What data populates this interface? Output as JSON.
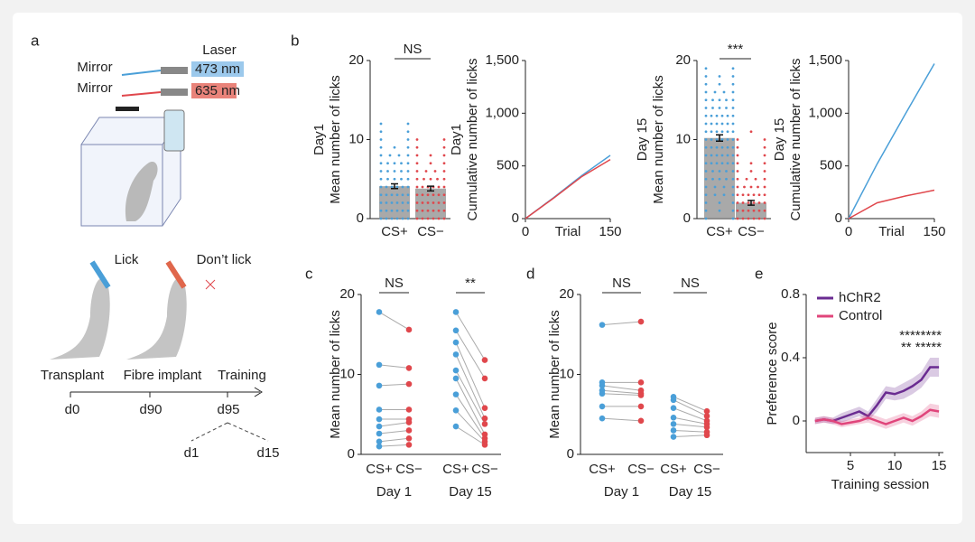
{
  "panel_labels": [
    "a",
    "b",
    "c",
    "d",
    "e"
  ],
  "panel_a": {
    "laser": "Laser",
    "mirrors": [
      "Mirror",
      "Mirror"
    ],
    "wavelengths": [
      "473 nm",
      "635 nm"
    ],
    "lick": "Lick",
    "dont_lick": "Don’t lick",
    "timeline": [
      "Transplant",
      "Fibre implant",
      "Training"
    ],
    "days": [
      "d0",
      "d90",
      "d95"
    ],
    "sub_days": [
      "d1",
      "d15"
    ]
  },
  "chart_data": [
    {
      "type": "strip",
      "annotation": "NS",
      "ylabel": [
        "Day1",
        "Mean number of licks"
      ],
      "categories": [
        "CS+",
        "CS−"
      ],
      "values": [
        4.1,
        3.8
      ],
      "errors": [
        0.3,
        0.3
      ],
      "ylim": [
        0,
        20
      ],
      "yticks": [
        0,
        10,
        20
      ],
      "dots": [
        {
          "color": "#4a9fd8",
          "levels": [
            0,
            1,
            2,
            3,
            4,
            5,
            6,
            7,
            8,
            9,
            10,
            11,
            12
          ],
          "counts": [
            6,
            6,
            6,
            6,
            6,
            5,
            5,
            5,
            4,
            3,
            2,
            2,
            2
          ]
        },
        {
          "color": "#e0474c",
          "levels": [
            0,
            1,
            2,
            3,
            4,
            5,
            6,
            7,
            8,
            9,
            10
          ],
          "counts": [
            6,
            6,
            6,
            6,
            6,
            5,
            4,
            3,
            3,
            2,
            2
          ]
        }
      ]
    },
    {
      "type": "line",
      "ylabel": [
        "Day1",
        "Cumulative number of licks"
      ],
      "xlabel": "Trial",
      "x": [
        0,
        50,
        100,
        150
      ],
      "xlim": [
        0,
        150
      ],
      "xticks": [
        0,
        150
      ],
      "ylim": [
        0,
        1500
      ],
      "yticks": [
        0,
        500,
        {
          "value": 1000,
          "label": "1,000"
        },
        {
          "value": 1500,
          "label": "1,500"
        }
      ],
      "series": [
        {
          "color": "#4a9fd8",
          "values": [
            0,
            200,
            410,
            600
          ]
        },
        {
          "color": "#e0474c",
          "values": [
            0,
            195,
            400,
            560
          ]
        }
      ]
    },
    {
      "type": "strip",
      "annotation": "***",
      "ylabel": [
        "Day 15",
        "Mean number of licks"
      ],
      "categories": [
        "CS+",
        "CS−"
      ],
      "values": [
        10.2,
        2.0
      ],
      "errors": [
        0.4,
        0.3
      ],
      "ylim": [
        0,
        20
      ],
      "yticks": [
        0,
        10,
        20
      ],
      "dots": [
        {
          "color": "#4a9fd8",
          "levels": [
            0,
            1,
            2,
            3,
            4,
            5,
            6,
            7,
            8,
            9,
            10,
            11,
            12,
            13,
            14,
            15,
            16,
            17,
            18,
            19
          ],
          "counts": [
            2,
            3,
            3,
            4,
            4,
            5,
            5,
            6,
            6,
            6,
            6,
            6,
            6,
            6,
            5,
            5,
            4,
            3,
            3,
            2
          ]
        },
        {
          "color": "#e0474c",
          "levels": [
            0,
            1,
            2,
            3,
            4,
            5,
            6,
            7,
            8,
            9,
            10,
            11
          ],
          "counts": [
            6,
            6,
            6,
            6,
            5,
            4,
            3,
            3,
            2,
            2,
            2,
            1
          ]
        }
      ]
    },
    {
      "type": "line",
      "ylabel": [
        "Day 15",
        "Cumulative number of licks"
      ],
      "xlabel": "Trial",
      "x": [
        0,
        50,
        100,
        150
      ],
      "xlim": [
        0,
        150
      ],
      "xticks": [
        0,
        150
      ],
      "ylim": [
        0,
        1500
      ],
      "yticks": [
        0,
        500,
        {
          "value": 1000,
          "label": "1,000"
        },
        {
          "value": 1500,
          "label": "1,500"
        }
      ],
      "series": [
        {
          "color": "#4a9fd8",
          "values": [
            0,
            520,
            1000,
            1470
          ]
        },
        {
          "color": "#e0474c",
          "values": [
            0,
            150,
            215,
            270
          ]
        }
      ]
    },
    {
      "type": "paired",
      "ylabel": [
        "Mean number of licks"
      ],
      "ylim": [
        0,
        20
      ],
      "yticks": [
        0,
        10,
        20
      ],
      "groups": [
        {
          "label": "Day 1",
          "annotation": "NS",
          "series": [
            {
              "name": "CS+",
              "color": "#4a9fd8",
              "values": [
                17.8,
                11.2,
                8.6,
                5.6,
                4.4,
                3.5,
                2.6,
                1.6,
                1.0
              ]
            },
            {
              "name": "CS−",
              "color": "#e0474c",
              "values": [
                15.6,
                10.8,
                8.8,
                5.6,
                4.4,
                4.0,
                3.0,
                2.0,
                1.2
              ]
            }
          ]
        },
        {
          "label": "Day 15",
          "annotation": "**",
          "series": [
            {
              "name": "CS+",
              "color": "#4a9fd8",
              "values": [
                17.8,
                15.5,
                14.0,
                12.5,
                10.5,
                9.5,
                7.5,
                5.5,
                3.5
              ]
            },
            {
              "name": "CS−",
              "color": "#e0474c",
              "values": [
                11.8,
                9.5,
                5.8,
                4.5,
                3.8,
                2.5,
                2.0,
                1.6,
                1.2
              ]
            }
          ]
        }
      ]
    },
    {
      "type": "paired",
      "ylabel": [
        "Mean number of licks"
      ],
      "ylim": [
        0,
        20
      ],
      "yticks": [
        0,
        10,
        20
      ],
      "groups": [
        {
          "label": "Day 1",
          "annotation": "NS",
          "series": [
            {
              "name": "CS+",
              "color": "#4a9fd8",
              "values": [
                16.2,
                9.0,
                8.6,
                8.0,
                7.6,
                6.0,
                4.5
              ]
            },
            {
              "name": "CS−",
              "color": "#e0474c",
              "values": [
                16.6,
                9.0,
                8.0,
                7.6,
                7.4,
                6.0,
                4.2
              ]
            }
          ]
        },
        {
          "label": "Day 15",
          "annotation": "NS",
          "series": [
            {
              "name": "CS+",
              "color": "#4a9fd8",
              "values": [
                7.2,
                6.8,
                5.8,
                4.6,
                3.8,
                3.0,
                2.2
              ]
            },
            {
              "name": "CS−",
              "color": "#e0474c",
              "values": [
                5.4,
                4.8,
                4.2,
                3.8,
                3.4,
                2.8,
                2.4
              ]
            }
          ]
        }
      ]
    },
    {
      "type": "band",
      "ylabel": [
        "Preference score"
      ],
      "xlabel": "Training session",
      "x": [
        1,
        2,
        3,
        4,
        5,
        6,
        7,
        8,
        9,
        10,
        11,
        12,
        13,
        14,
        15
      ],
      "xlim": [
        0,
        15.5
      ],
      "xticks": [
        5,
        10,
        15
      ],
      "ylim": [
        -0.2,
        0.8
      ],
      "yticks": [
        0,
        0.4,
        0.8
      ],
      "annotations": [
        "********",
        "** *****"
      ],
      "series": [
        {
          "name": "hChR2",
          "color": "#6a2c91",
          "values": [
            0,
            0.01,
            0,
            0.02,
            0.04,
            0.06,
            0.03,
            0.1,
            0.18,
            0.17,
            0.19,
            0.22,
            0.26,
            0.34,
            0.34
          ],
          "errors": [
            0.02,
            0.02,
            0.02,
            0.03,
            0.03,
            0.03,
            0.03,
            0.04,
            0.04,
            0.04,
            0.05,
            0.05,
            0.05,
            0.06,
            0.06
          ]
        },
        {
          "name": "Control",
          "color": "#e0457b",
          "values": [
            0,
            0.01,
            0,
            -0.02,
            -0.01,
            0,
            0.02,
            0,
            -0.02,
            0,
            0.02,
            0,
            0.03,
            0.07,
            0.06
          ],
          "errors": [
            0.02,
            0.02,
            0.02,
            0.02,
            0.02,
            0.02,
            0.03,
            0.03,
            0.03,
            0.03,
            0.03,
            0.03,
            0.03,
            0.04,
            0.04
          ]
        }
      ]
    }
  ]
}
